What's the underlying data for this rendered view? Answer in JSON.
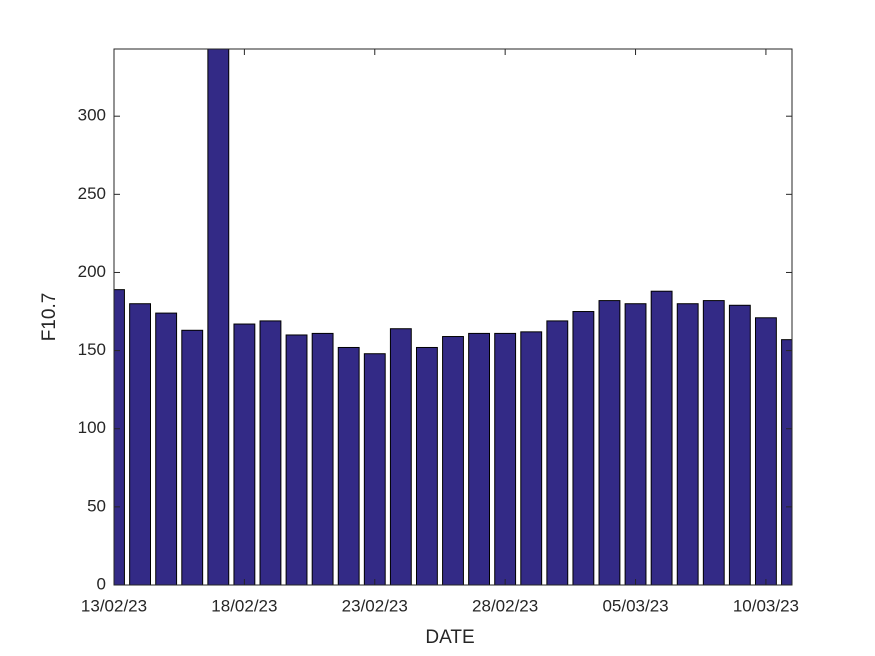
{
  "chart_data": {
    "type": "bar",
    "xlabel": "DATE",
    "ylabel": "F10.7",
    "categories": [
      "13/02/23",
      null,
      null,
      null,
      null,
      "18/02/23",
      null,
      null,
      null,
      null,
      "23/02/23",
      null,
      null,
      null,
      null,
      "28/02/23",
      null,
      null,
      null,
      null,
      "05/03/23",
      null,
      null,
      null,
      null,
      "10/03/23",
      null
    ],
    "values": [
      189,
      180,
      174,
      163,
      343,
      167,
      169,
      160,
      161,
      152,
      148,
      164,
      152,
      159,
      161,
      161,
      162,
      169,
      175,
      182,
      180,
      188,
      180,
      182,
      179,
      171,
      157
    ],
    "color": "#332a86",
    "ylim": [
      0,
      343
    ],
    "yticks": [
      0,
      50,
      100,
      150,
      200,
      250,
      300
    ],
    "grid": false
  }
}
